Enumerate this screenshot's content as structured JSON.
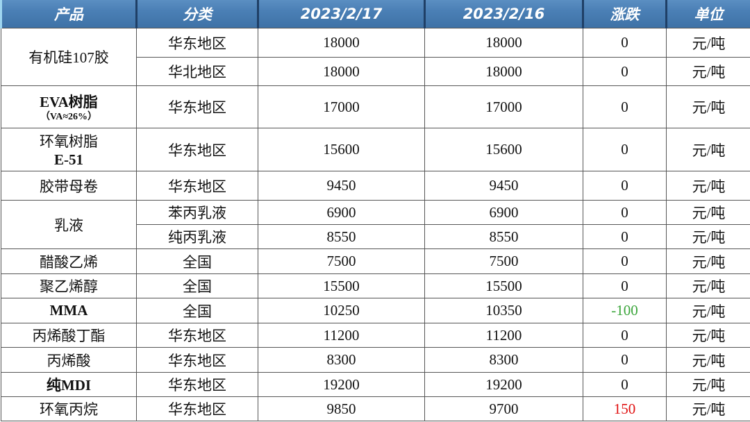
{
  "headers": [
    "产品",
    "分类",
    "2023/2/17",
    "2023/2/16",
    "涨跌",
    "单位"
  ],
  "colors": {
    "header_bg": "#4a7fb5",
    "negative": "#3aa53a",
    "positive": "#e01010"
  },
  "rows": [
    {
      "product": "有机硅107胶",
      "product_sub": "",
      "bold": false,
      "rowspan": 2,
      "category": "华东地区",
      "p1": "18000",
      "p2": "18000",
      "change": "0",
      "unit": "元/吨"
    },
    {
      "category": "华北地区",
      "p1": "18000",
      "p2": "18000",
      "change": "0",
      "unit": "元/吨"
    },
    {
      "product": "EVA树脂",
      "product_sub": "（VA≈26%）",
      "bold": true,
      "rowspan": 1,
      "category": "华东地区",
      "p1": "17000",
      "p2": "17000",
      "change": "0",
      "unit": "元/吨"
    },
    {
      "product": "环氧树脂",
      "product_sub": "E-51",
      "bold": false,
      "rowspan": 1,
      "category": "华东地区",
      "p1": "15600",
      "p2": "15600",
      "change": "0",
      "unit": "元/吨"
    },
    {
      "product": "胶带母卷",
      "product_sub": "",
      "bold": false,
      "rowspan": 1,
      "category": "华东地区",
      "p1": "9450",
      "p2": "9450",
      "change": "0",
      "unit": "元/吨"
    },
    {
      "product": "乳液",
      "product_sub": "",
      "bold": false,
      "rowspan": 2,
      "category": "苯丙乳液",
      "p1": "6900",
      "p2": "6900",
      "change": "0",
      "unit": "元/吨"
    },
    {
      "category": "纯丙乳液",
      "p1": "8550",
      "p2": "8550",
      "change": "0",
      "unit": "元/吨"
    },
    {
      "product": "醋酸乙烯",
      "product_sub": "",
      "bold": false,
      "rowspan": 1,
      "category": "全国",
      "p1": "7500",
      "p2": "7500",
      "change": "0",
      "unit": "元/吨"
    },
    {
      "product": "聚乙烯醇",
      "product_sub": "",
      "bold": false,
      "rowspan": 1,
      "category": "全国",
      "p1": "15500",
      "p2": "15500",
      "change": "0",
      "unit": "元/吨"
    },
    {
      "product": "MMA",
      "product_sub": "",
      "bold": true,
      "rowspan": 1,
      "category": "全国",
      "p1": "10250",
      "p2": "10350",
      "change": "-100",
      "unit": "元/吨"
    },
    {
      "product": "丙烯酸丁酯",
      "product_sub": "",
      "bold": false,
      "rowspan": 1,
      "category": "华东地区",
      "p1": "11200",
      "p2": "11200",
      "change": "0",
      "unit": "元/吨"
    },
    {
      "product": "丙烯酸",
      "product_sub": "",
      "bold": false,
      "rowspan": 1,
      "category": "华东地区",
      "p1": "8300",
      "p2": "8300",
      "change": "0",
      "unit": "元/吨"
    },
    {
      "product": "纯MDI",
      "product_sub": "",
      "bold": true,
      "rowspan": 1,
      "category": "华东地区",
      "p1": "19200",
      "p2": "19200",
      "change": "0",
      "unit": "元/吨"
    },
    {
      "product": "环氧丙烷",
      "product_sub": "",
      "bold": false,
      "rowspan": 1,
      "category": "华东地区",
      "p1": "9850",
      "p2": "9700",
      "change": "150",
      "unit": "元/吨"
    }
  ]
}
